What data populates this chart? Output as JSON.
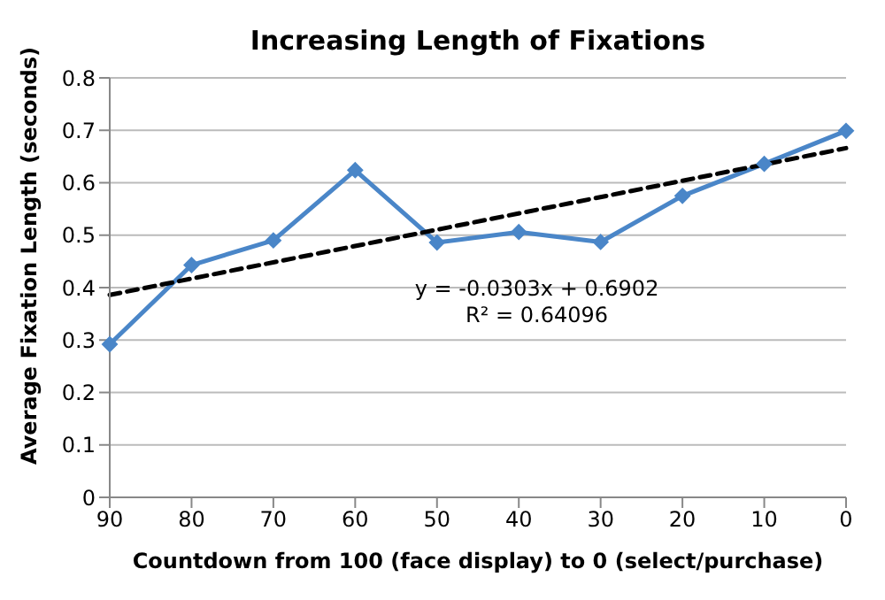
{
  "chart_data": {
    "type": "line",
    "title": "Increasing Length of Fixations",
    "xlabel": "Countdown from 100 (face display) to 0 (select/purchase)",
    "ylabel": "Average Fixation Length (seconds)",
    "categories": [
      "90",
      "80",
      "70",
      "60",
      "50",
      "40",
      "30",
      "20",
      "10",
      "0"
    ],
    "series": [
      {
        "color": "#4a86c8",
        "marker": "diamond",
        "line_style": "solid",
        "values": [
          0.292,
          0.443,
          0.49,
          0.624,
          0.486,
          0.506,
          0.487,
          0.575,
          0.636,
          0.699
        ]
      },
      {
        "color": "#000000",
        "marker": "none",
        "line_style": "dashed",
        "values": [
          0.386,
          null,
          null,
          null,
          null,
          null,
          null,
          null,
          null,
          0.666
        ]
      }
    ],
    "ylim": [
      0,
      0.8
    ],
    "yticks": [
      0,
      0.1,
      0.2,
      0.3,
      0.4,
      0.5,
      0.6,
      0.7,
      0.8
    ],
    "grid": "y",
    "legend": false,
    "annotations": [
      "y = -0.0303x + 0.6902",
      "R² = 0.64096"
    ]
  }
}
